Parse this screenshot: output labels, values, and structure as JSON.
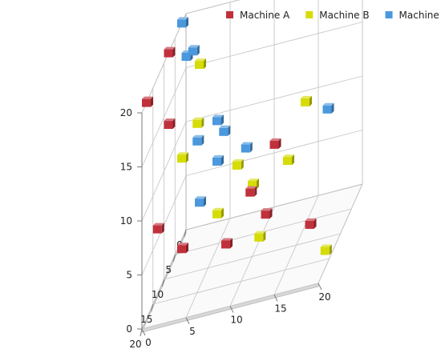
{
  "chart_data": {
    "type": "scatter",
    "projection": "3d",
    "title": "",
    "xlabel": "",
    "ylabel": "",
    "zlabel": "",
    "xlim": [
      0,
      20
    ],
    "ylim": [
      0,
      20
    ],
    "zlim": [
      0,
      20
    ],
    "xticks": [
      "0",
      "5",
      "10",
      "15",
      "20"
    ],
    "yticks": [
      "0",
      "5",
      "10",
      "15",
      "20"
    ],
    "zticks": [
      "0",
      "5",
      "10",
      "15",
      "20"
    ],
    "grid": true,
    "legend_position": "top-right",
    "marker": "cube",
    "series": [
      {
        "name": "Machine A",
        "color": "#c0313c",
        "points": [
          {
            "x": 8,
            "y": 0,
            "z": 20
          },
          {
            "x": 18,
            "y": 0,
            "z": 20
          },
          {
            "x": 12,
            "y": 1,
            "z": 15
          },
          {
            "x": 13,
            "y": 0,
            "z": 6
          },
          {
            "x": 14,
            "y": 3,
            "z": 4
          },
          {
            "x": 18,
            "y": 9,
            "z": 5
          },
          {
            "x": 15,
            "y": 11,
            "z": 8
          },
          {
            "x": 8,
            "y": 12,
            "z": 9
          },
          {
            "x": 16,
            "y": 13,
            "z": 6
          },
          {
            "x": 16,
            "y": 18,
            "z": 4
          }
        ]
      },
      {
        "name": "Machine B",
        "color": "#d6dc06",
        "points": [
          {
            "x": 10,
            "y": 4,
            "z": 19
          },
          {
            "x": 11,
            "y": 4,
            "z": 14
          },
          {
            "x": 18,
            "y": 4,
            "z": 14
          },
          {
            "x": 13,
            "y": 9,
            "z": 10
          },
          {
            "x": 18,
            "y": 8,
            "z": 8
          },
          {
            "x": 10,
            "y": 16,
            "z": 13
          },
          {
            "x": 10,
            "y": 14,
            "z": 8
          },
          {
            "x": 11,
            "y": 11,
            "z": 2
          },
          {
            "x": 13,
            "y": 19,
            "z": 0
          },
          {
            "x": 6,
            "y": 9,
            "z": 5
          }
        ]
      },
      {
        "name": "Machine C",
        "color": "#4a98dd",
        "points": [
          {
            "x": 2,
            "y": 0,
            "z": 20
          },
          {
            "x": 9,
            "y": 3,
            "z": 20
          },
          {
            "x": 15,
            "y": 5,
            "z": 14
          },
          {
            "x": 14,
            "y": 7,
            "z": 15
          },
          {
            "x": 17,
            "y": 11,
            "z": 13
          },
          {
            "x": 7,
            "y": 6,
            "z": 11
          },
          {
            "x": 6,
            "y": 5,
            "z": 8
          },
          {
            "x": 0,
            "y": 0,
            "z": 16
          },
          {
            "x": 8,
            "y": 18,
            "z": 11
          },
          {
            "x": 2,
            "y": 2,
            "z": 3
          }
        ]
      }
    ]
  }
}
